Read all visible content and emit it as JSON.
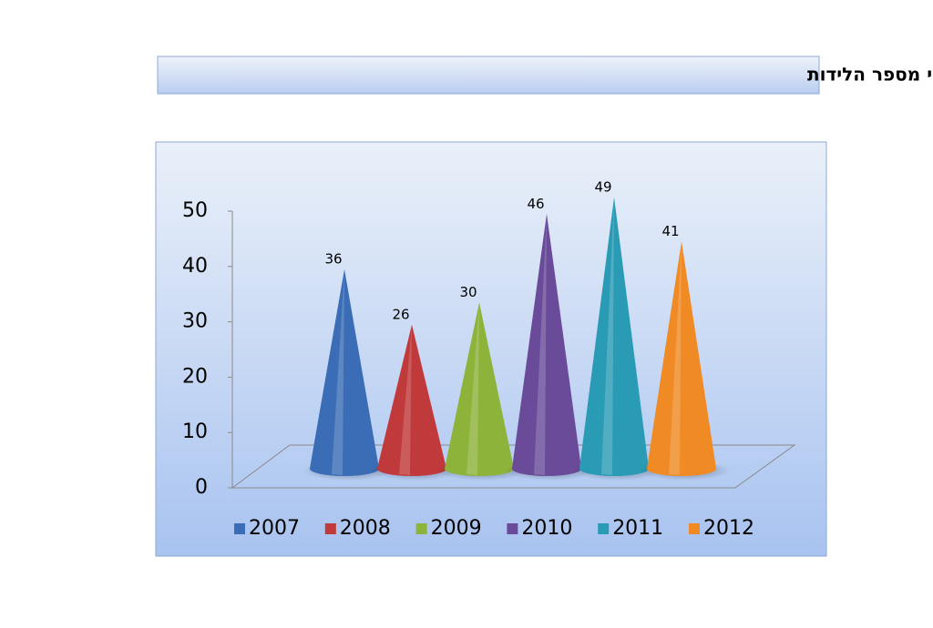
{
  "chart_data": {
    "type": "cone",
    "title": "פונדקאות בישראל – נתוני מספר הלידות",
    "categories": [
      "2007",
      "2008",
      "2009",
      "2010",
      "2011",
      "2012"
    ],
    "values": [
      36,
      26,
      30,
      46,
      49,
      41
    ],
    "colors": [
      "#3a6db5",
      "#c0393b",
      "#8db33a",
      "#6a4b9a",
      "#2a9bb5",
      "#f08a24"
    ],
    "ylim": [
      0,
      50
    ],
    "yticks": [
      0,
      10,
      20,
      30,
      40,
      50
    ],
    "legend": "bottom"
  }
}
